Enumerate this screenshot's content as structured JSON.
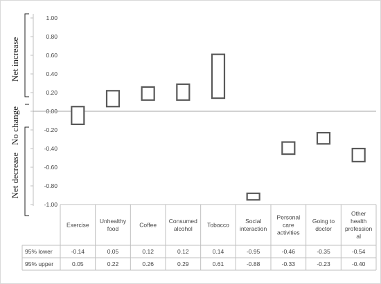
{
  "chart_data": {
    "type": "floating-bar",
    "title": "",
    "categories": [
      [
        "Exercise"
      ],
      [
        "Unhealthy",
        "food"
      ],
      [
        "Coffee"
      ],
      [
        "Consumed",
        "alcohol"
      ],
      [
        "Tobacco"
      ],
      [
        "Social",
        "interaction"
      ],
      [
        "Personal",
        "care",
        "activities"
      ],
      [
        "Going to",
        "doctor"
      ],
      [
        "Other",
        "health",
        "profession",
        "al"
      ]
    ],
    "series": [
      {
        "name": "95% lower",
        "values": [
          -0.14,
          0.05,
          0.12,
          0.12,
          0.14,
          -0.95,
          -0.46,
          -0.35,
          -0.54
        ]
      },
      {
        "name": "95% upper",
        "values": [
          0.05,
          0.22,
          0.26,
          0.29,
          0.61,
          -0.88,
          -0.33,
          -0.23,
          -0.4
        ]
      }
    ],
    "value_labels": {
      "lower": [
        "-0.14",
        "0.05",
        "0.12",
        "0.12",
        "0.14",
        "-0.95",
        "-0.46",
        "-0.35",
        "-0.54"
      ],
      "upper": [
        "0.05",
        "0.22",
        "0.26",
        "0.29",
        "0.61",
        "-0.88",
        "-0.33",
        "-0.23",
        "-0.40"
      ]
    },
    "ylim": [
      -1.0,
      1.0
    ],
    "yticks": [
      "1.00",
      "0.80",
      "0.60",
      "0.40",
      "0.20",
      "0.00",
      "-0.20",
      "-0.40",
      "-0.60",
      "-0.80",
      "-1.00"
    ],
    "grid": false,
    "zero_line": true,
    "side_labels": [
      "Net increase",
      "No change",
      "Net decrease"
    ],
    "colors": {
      "box_stroke": "#595959",
      "axis": "#bfbfbf",
      "zero_line": "#a6a6a6"
    }
  }
}
